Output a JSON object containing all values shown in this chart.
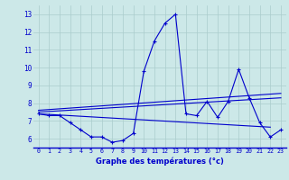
{
  "title": "Graphe des températures (°c)",
  "bg_color": "#cce8e8",
  "grid_color": "#aacccc",
  "line_color": "#0000cc",
  "xlim": [
    -0.5,
    23.5
  ],
  "ylim": [
    5.5,
    13.5
  ],
  "yticks": [
    6,
    7,
    8,
    9,
    10,
    11,
    12,
    13
  ],
  "xticks": [
    0,
    1,
    2,
    3,
    4,
    5,
    6,
    7,
    8,
    9,
    10,
    11,
    12,
    13,
    14,
    15,
    16,
    17,
    18,
    19,
    20,
    21,
    22,
    23
  ],
  "xtick_labels": [
    "0",
    "1",
    "2",
    "3",
    "4",
    "5",
    "6",
    "7",
    "8",
    "9",
    "10",
    "11",
    "12",
    "13",
    "14",
    "15",
    "16",
    "17",
    "18",
    "19",
    "20",
    "21",
    "22",
    "23"
  ],
  "line1_x": [
    0,
    1,
    2,
    3,
    4,
    5,
    6,
    7,
    8,
    9,
    10,
    11,
    12,
    13,
    14,
    15,
    16,
    17,
    18,
    19,
    20,
    21,
    22,
    23
  ],
  "line1_y": [
    7.4,
    7.3,
    7.3,
    6.9,
    6.5,
    6.1,
    6.1,
    5.8,
    5.9,
    6.3,
    9.8,
    11.5,
    12.5,
    13.0,
    7.4,
    7.3,
    8.1,
    7.2,
    8.1,
    9.9,
    8.3,
    6.9,
    6.1,
    6.5
  ],
  "line2_x": [
    0,
    22
  ],
  "line2_y": [
    7.4,
    6.65
  ],
  "line3_x": [
    0,
    23
  ],
  "line3_y": [
    7.5,
    8.3
  ],
  "line4_x": [
    0,
    23
  ],
  "line4_y": [
    7.6,
    8.55
  ]
}
